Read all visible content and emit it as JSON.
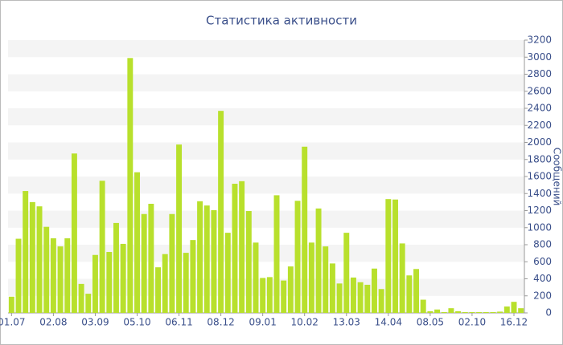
{
  "chart_data": {
    "type": "bar",
    "title": "Статистика активности",
    "y_axis_label": "Сообщений",
    "categories": [
      "01.07",
      null,
      null,
      null,
      null,
      null,
      "02.08",
      null,
      null,
      null,
      null,
      null,
      "03.09",
      null,
      null,
      null,
      null,
      null,
      "05.10",
      null,
      null,
      null,
      null,
      null,
      "06.11",
      null,
      null,
      null,
      null,
      null,
      "08.12",
      null,
      null,
      null,
      null,
      null,
      "09.01",
      null,
      null,
      null,
      null,
      null,
      "10.02",
      null,
      null,
      null,
      null,
      null,
      "13.03",
      null,
      null,
      null,
      null,
      null,
      "14.04",
      null,
      null,
      null,
      null,
      null,
      "08.05",
      null,
      null,
      null,
      null,
      null,
      "02.10",
      null,
      null,
      null,
      null,
      null,
      "16.12",
      null
    ],
    "values": [
      190,
      870,
      1430,
      1300,
      1250,
      1010,
      875,
      780,
      875,
      1870,
      340,
      225,
      680,
      1550,
      715,
      1055,
      810,
      2990,
      1650,
      1160,
      1280,
      535,
      690,
      1160,
      1975,
      705,
      855,
      1310,
      1260,
      1205,
      2370,
      940,
      1515,
      1545,
      1195,
      825,
      410,
      420,
      1380,
      380,
      545,
      1315,
      1950,
      825,
      1225,
      780,
      580,
      345,
      940,
      415,
      360,
      330,
      520,
      280,
      1335,
      1330,
      815,
      440,
      515,
      155,
      20,
      40,
      10,
      55,
      20,
      10,
      10,
      10,
      10,
      10,
      15,
      75,
      130,
      55
    ],
    "color": "#b8e02c",
    "ylim": [
      0,
      3200
    ],
    "yticks": [
      0,
      200,
      400,
      600,
      800,
      1000,
      1200,
      1400,
      1600,
      1800,
      2000,
      2200,
      2400,
      2600,
      2800,
      3000,
      3200
    ],
    "grid": true
  }
}
